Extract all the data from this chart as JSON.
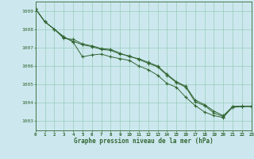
{
  "background_color": "#cce8ee",
  "plot_bg_color": "#cce8ee",
  "grid_color": "#99ccbb",
  "line_color": "#336633",
  "xlabel": "Graphe pression niveau de la mer (hPa)",
  "xlim": [
    0,
    23
  ],
  "ylim": [
    1002.5,
    1009.5
  ],
  "yticks": [
    1003,
    1004,
    1005,
    1006,
    1007,
    1008,
    1009
  ],
  "xticks": [
    0,
    1,
    2,
    3,
    4,
    5,
    6,
    7,
    8,
    9,
    10,
    11,
    12,
    13,
    14,
    15,
    16,
    17,
    18,
    19,
    20,
    21,
    22,
    23
  ],
  "series": [
    [
      1009.1,
      1008.4,
      1008.0,
      1007.6,
      1007.3,
      1006.5,
      1006.6,
      1006.65,
      1006.5,
      1006.4,
      1006.3,
      1006.0,
      1005.8,
      1005.5,
      1005.05,
      1004.85,
      1004.3,
      1003.85,
      1003.5,
      1003.3,
      1003.2,
      1003.8,
      1003.8,
      1003.8
    ],
    [
      1009.1,
      1008.4,
      1008.0,
      1007.55,
      1007.35,
      1007.15,
      1007.05,
      1006.9,
      1006.85,
      1006.65,
      1006.55,
      1006.35,
      1006.15,
      1005.95,
      1005.5,
      1005.1,
      1004.85,
      1004.05,
      1003.85,
      1003.45,
      1003.25,
      1003.75,
      1003.8,
      1003.8
    ],
    [
      1009.1,
      1008.4,
      1008.0,
      1007.5,
      1007.45,
      1007.2,
      1007.1,
      1006.95,
      1006.9,
      1006.7,
      1006.5,
      1006.4,
      1006.2,
      1006.0,
      1005.55,
      1005.15,
      1004.9,
      1004.15,
      1003.9,
      1003.55,
      1003.3,
      1003.8,
      1003.82,
      1003.82
    ]
  ]
}
